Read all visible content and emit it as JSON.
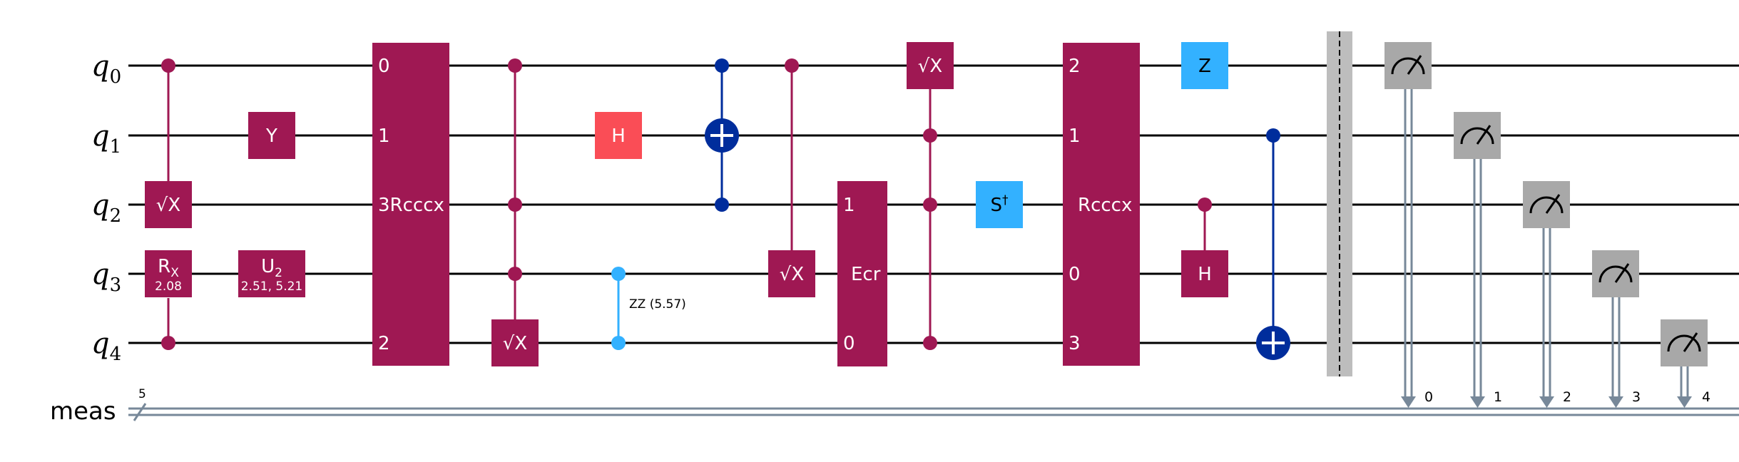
{
  "circuit": {
    "qubits": [
      "q",
      "q",
      "q",
      "q",
      "q"
    ],
    "qubit_indices": [
      "0",
      "1",
      "2",
      "3",
      "4"
    ],
    "creg": {
      "name": "meas",
      "size": "5",
      "bit_labels": [
        "0",
        "1",
        "2",
        "3",
        "4"
      ]
    },
    "colors": {
      "multi": "#9f1853",
      "pauli_y": "#9f1853",
      "hadamard_red": "#fa4d56",
      "cnot_blue": "#002d9c",
      "zz_light": "#33b1ff",
      "light_blue": "#33b1ff",
      "measure": "#a8a8a8",
      "barrier": "#bdbdbd",
      "classical": "#778899"
    },
    "labels": {
      "sqrtx": "√X",
      "rx": "R",
      "rx_sub": "X",
      "rx_param": "2.08",
      "y": "Y",
      "u2": "U",
      "u2_sub": "2",
      "u2_param": "2.51, 5.21",
      "rcccx1_q0": "0",
      "rcccx1_q1": "1",
      "rcccx1_q2": "3",
      "rcccx1_name": "Rcccx",
      "rcccx1_q4": "2",
      "h": "H",
      "zz": "ZZ (5.57)",
      "ecr_top": "1",
      "ecr_name": "Ecr",
      "ecr_bottom": "0",
      "sdg": "S",
      "sdg_sup": "†",
      "rcccx2_q0": "2",
      "rcccx2_q1": "1",
      "rcccx2_name": "Rcccx",
      "rcccx2_q3": "0",
      "rcccx2_q4": "3",
      "z": "Z"
    }
  }
}
